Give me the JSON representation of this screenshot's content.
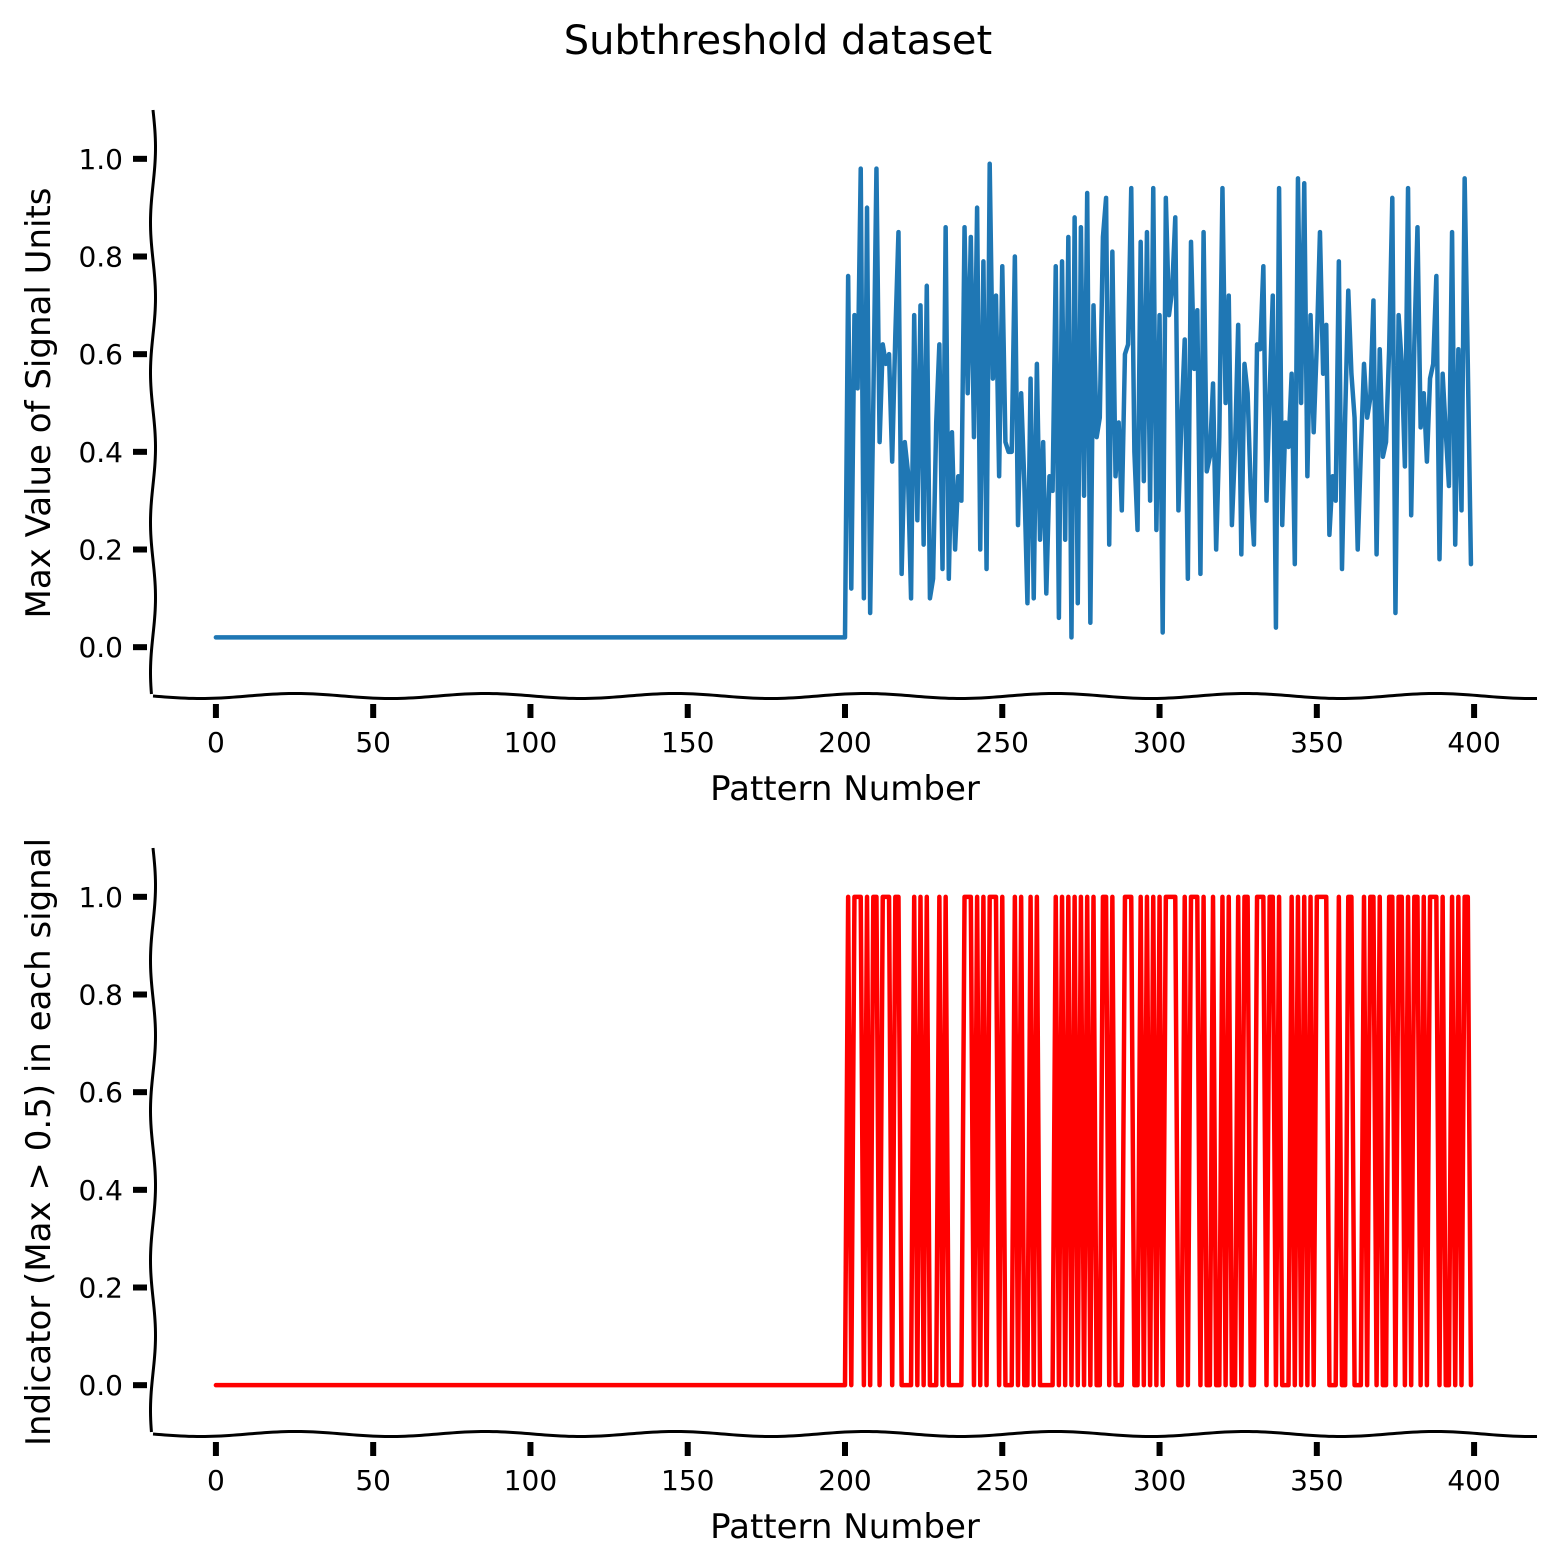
{
  "figure": {
    "title": "Subthreshold dataset"
  },
  "chart_data": [
    {
      "type": "line",
      "title": "",
      "xlabel": "Pattern Number",
      "ylabel": "Max Value of Signal Units",
      "xlim": [
        -20,
        420
      ],
      "ylim": [
        -0.1,
        1.1
      ],
      "xticks": [
        "0",
        "50",
        "100",
        "150",
        "200",
        "250",
        "300",
        "350",
        "400"
      ],
      "yticks": [
        "0.0",
        "0.2",
        "0.4",
        "0.6",
        "0.8",
        "1.0"
      ],
      "color": "#1f77b4",
      "grid": false,
      "legend": "none",
      "series": [
        {
          "x": [
            0,
            10,
            20,
            30,
            40,
            50,
            60,
            70,
            80,
            90,
            100,
            110,
            120,
            130,
            140,
            150,
            160,
            170,
            180,
            190,
            200,
            201,
            202,
            203,
            204,
            205,
            206,
            207,
            208,
            209,
            210,
            211,
            212,
            213,
            214,
            215,
            216,
            217,
            218,
            219,
            220,
            221,
            222,
            223,
            224,
            225,
            226,
            227,
            228,
            229,
            230,
            231,
            232,
            233,
            234,
            235,
            236,
            237,
            238,
            239,
            240,
            241,
            242,
            243,
            244,
            245,
            246,
            247,
            248,
            249,
            250,
            251,
            252,
            253,
            254,
            255,
            256,
            257,
            258,
            259,
            260,
            261,
            262,
            263,
            264,
            265,
            266,
            267,
            268,
            269,
            270,
            271,
            272,
            273,
            274,
            275,
            276,
            277,
            278,
            279,
            280,
            281,
            282,
            283,
            284,
            285,
            286,
            287,
            288,
            289,
            290,
            291,
            292,
            293,
            294,
            295,
            296,
            297,
            298,
            299,
            300,
            301,
            302,
            303,
            304,
            305,
            306,
            307,
            308,
            309,
            310,
            311,
            312,
            313,
            314,
            315,
            316,
            317,
            318,
            319,
            320,
            321,
            322,
            323,
            324,
            325,
            326,
            327,
            328,
            329,
            330,
            331,
            332,
            333,
            334,
            335,
            336,
            337,
            338,
            339,
            340,
            341,
            342,
            343,
            344,
            345,
            346,
            347,
            348,
            349,
            350,
            351,
            352,
            353,
            354,
            355,
            356,
            357,
            358,
            359,
            360,
            361,
            362,
            363,
            364,
            365,
            366,
            367,
            368,
            369,
            370,
            371,
            372,
            373,
            374,
            375,
            376,
            377,
            378,
            379,
            380,
            381,
            382,
            383,
            384,
            385,
            386,
            387,
            388,
            389,
            390,
            391,
            392,
            393,
            394,
            395,
            396,
            397,
            398,
            399
          ],
          "y": [
            0.02,
            0.02,
            0.02,
            0.02,
            0.02,
            0.02,
            0.02,
            0.02,
            0.02,
            0.02,
            0.02,
            0.02,
            0.02,
            0.02,
            0.02,
            0.02,
            0.02,
            0.02,
            0.02,
            0.02,
            0.02,
            0.76,
            0.12,
            0.68,
            0.53,
            0.98,
            0.1,
            0.9,
            0.07,
            0.5,
            0.98,
            0.42,
            0.62,
            0.58,
            0.6,
            0.38,
            0.64,
            0.85,
            0.15,
            0.42,
            0.36,
            0.1,
            0.68,
            0.26,
            0.7,
            0.21,
            0.74,
            0.1,
            0.14,
            0.46,
            0.62,
            0.16,
            0.86,
            0.14,
            0.44,
            0.2,
            0.35,
            0.3,
            0.86,
            0.52,
            0.84,
            0.43,
            0.9,
            0.2,
            0.79,
            0.16,
            0.99,
            0.55,
            0.72,
            0.35,
            0.78,
            0.42,
            0.4,
            0.4,
            0.8,
            0.25,
            0.52,
            0.34,
            0.09,
            0.55,
            0.1,
            0.58,
            0.22,
            0.42,
            0.11,
            0.35,
            0.32,
            0.78,
            0.06,
            0.79,
            0.22,
            0.84,
            0.02,
            0.88,
            0.09,
            0.86,
            0.31,
            0.93,
            0.05,
            0.7,
            0.43,
            0.47,
            0.84,
            0.92,
            0.21,
            0.81,
            0.35,
            0.46,
            0.28,
            0.6,
            0.62,
            0.94,
            0.4,
            0.24,
            0.83,
            0.34,
            0.85,
            0.3,
            0.94,
            0.24,
            0.68,
            0.03,
            0.92,
            0.68,
            0.73,
            0.88,
            0.28,
            0.47,
            0.63,
            0.14,
            0.83,
            0.57,
            0.69,
            0.15,
            0.85,
            0.36,
            0.39,
            0.54,
            0.2,
            0.43,
            0.94,
            0.5,
            0.72,
            0.25,
            0.41,
            0.66,
            0.19,
            0.58,
            0.52,
            0.32,
            0.21,
            0.62,
            0.61,
            0.78,
            0.3,
            0.52,
            0.72,
            0.04,
            0.94,
            0.25,
            0.46,
            0.41,
            0.56,
            0.17,
            0.96,
            0.5,
            0.95,
            0.35,
            0.68,
            0.44,
            0.62,
            0.85,
            0.56,
            0.66,
            0.23,
            0.35,
            0.3,
            0.79,
            0.16,
            0.47,
            0.73,
            0.56,
            0.47,
            0.2,
            0.4,
            0.58,
            0.47,
            0.51,
            0.71,
            0.19,
            0.61,
            0.39,
            0.42,
            0.61,
            0.92,
            0.07,
            0.68,
            0.58,
            0.37,
            0.94,
            0.27,
            0.62,
            0.86,
            0.45,
            0.52,
            0.38,
            0.55,
            0.58,
            0.76,
            0.18,
            0.56,
            0.44,
            0.33,
            0.85,
            0.21,
            0.61,
            0.28,
            0.96,
            0.58,
            0.17
          ]
        }
      ]
    },
    {
      "type": "line",
      "title": "",
      "xlabel": "Pattern Number",
      "ylabel": "Indicator (Max > 0.5) in each signal",
      "xlim": [
        -20,
        420
      ],
      "ylim": [
        -0.1,
        1.1
      ],
      "xticks": [
        "0",
        "50",
        "100",
        "150",
        "200",
        "250",
        "300",
        "350",
        "400"
      ],
      "yticks": [
        "0.0",
        "0.2",
        "0.4",
        "0.6",
        "0.8",
        "1.0"
      ],
      "color": "#ff0000",
      "grid": false,
      "legend": "none",
      "series": [
        {
          "x": [
            0,
            10,
            20,
            30,
            40,
            50,
            60,
            70,
            80,
            90,
            100,
            110,
            120,
            130,
            140,
            150,
            160,
            170,
            180,
            190,
            200,
            201,
            202,
            203,
            204,
            205,
            206,
            207,
            208,
            209,
            210,
            211,
            212,
            213,
            214,
            215,
            216,
            217,
            218,
            219,
            220,
            221,
            222,
            223,
            224,
            225,
            226,
            227,
            228,
            229,
            230,
            231,
            232,
            233,
            234,
            235,
            236,
            237,
            238,
            239,
            240,
            241,
            242,
            243,
            244,
            245,
            246,
            247,
            248,
            249,
            250,
            251,
            252,
            253,
            254,
            255,
            256,
            257,
            258,
            259,
            260,
            261,
            262,
            263,
            264,
            265,
            266,
            267,
            268,
            269,
            270,
            271,
            272,
            273,
            274,
            275,
            276,
            277,
            278,
            279,
            280,
            281,
            282,
            283,
            284,
            285,
            286,
            287,
            288,
            289,
            290,
            291,
            292,
            293,
            294,
            295,
            296,
            297,
            298,
            299,
            300,
            301,
            302,
            303,
            304,
            305,
            306,
            307,
            308,
            309,
            310,
            311,
            312,
            313,
            314,
            315,
            316,
            317,
            318,
            319,
            320,
            321,
            322,
            323,
            324,
            325,
            326,
            327,
            328,
            329,
            330,
            331,
            332,
            333,
            334,
            335,
            336,
            337,
            338,
            339,
            340,
            341,
            342,
            343,
            344,
            345,
            346,
            347,
            348,
            349,
            350,
            351,
            352,
            353,
            354,
            355,
            356,
            357,
            358,
            359,
            360,
            361,
            362,
            363,
            364,
            365,
            366,
            367,
            368,
            369,
            370,
            371,
            372,
            373,
            374,
            375,
            376,
            377,
            378,
            379,
            380,
            381,
            382,
            383,
            384,
            385,
            386,
            387,
            388,
            389,
            390,
            391,
            392,
            393,
            394,
            395,
            396,
            397,
            398,
            399
          ],
          "y": [
            0,
            0,
            0,
            0,
            0,
            0,
            0,
            0,
            0,
            0,
            0,
            0,
            0,
            0,
            0,
            0,
            0,
            0,
            0,
            0,
            0,
            1,
            0,
            1,
            1,
            1,
            0,
            1,
            0,
            1,
            1,
            0,
            1,
            1,
            1,
            0,
            1,
            1,
            0,
            0,
            0,
            0,
            1,
            0,
            1,
            0,
            1,
            0,
            0,
            0,
            1,
            0,
            1,
            0,
            0,
            0,
            0,
            0,
            1,
            1,
            1,
            0,
            1,
            0,
            1,
            0,
            1,
            1,
            1,
            0,
            1,
            0,
            0,
            0,
            1,
            0,
            1,
            0,
            0,
            1,
            0,
            1,
            0,
            0,
            0,
            0,
            0,
            1,
            0,
            1,
            0,
            1,
            0,
            1,
            0,
            1,
            0,
            1,
            0,
            1,
            0,
            0,
            1,
            1,
            0,
            1,
            0,
            0,
            0,
            1,
            1,
            1,
            0,
            0,
            1,
            0,
            1,
            0,
            1,
            0,
            1,
            0,
            1,
            1,
            1,
            1,
            0,
            0,
            1,
            0,
            1,
            1,
            1,
            0,
            1,
            0,
            0,
            1,
            0,
            0,
            1,
            0,
            1,
            0,
            0,
            1,
            0,
            1,
            1,
            0,
            0,
            1,
            1,
            1,
            0,
            1,
            1,
            0,
            1,
            0,
            0,
            0,
            1,
            0,
            1,
            0,
            1,
            0,
            1,
            0,
            1,
            1,
            1,
            1,
            0,
            0,
            0,
            1,
            0,
            0,
            1,
            1,
            0,
            0,
            0,
            1,
            0,
            1,
            1,
            0,
            1,
            0,
            0,
            1,
            1,
            0,
            1,
            1,
            0,
            1,
            0,
            1,
            1,
            0,
            1,
            0,
            1,
            1,
            1,
            0,
            1,
            0,
            0,
            1,
            0,
            1,
            0,
            1,
            1,
            0
          ]
        }
      ]
    }
  ]
}
